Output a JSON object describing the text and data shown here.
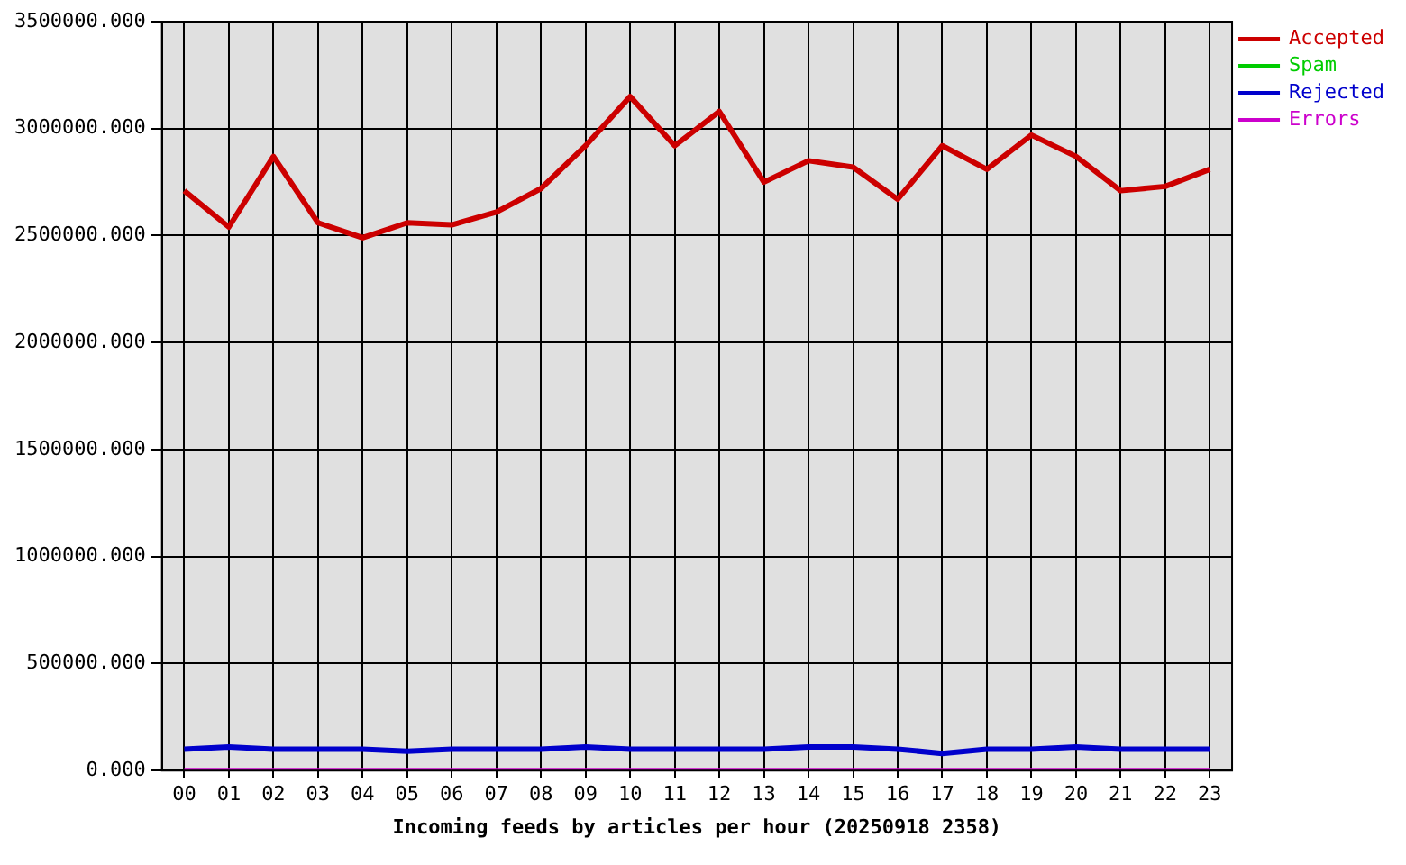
{
  "chart_data": {
    "type": "line",
    "xlabel": "Incoming feeds by articles per hour (20250918 2358)",
    "categories": [
      "00",
      "01",
      "02",
      "03",
      "04",
      "05",
      "06",
      "07",
      "08",
      "09",
      "10",
      "11",
      "12",
      "13",
      "14",
      "15",
      "16",
      "17",
      "18",
      "19",
      "20",
      "21",
      "22",
      "23"
    ],
    "series": [
      {
        "name": "Accepted",
        "color": "#cc0000",
        "values": [
          2710000,
          2540000,
          2870000,
          2560000,
          2490000,
          2560000,
          2550000,
          2610000,
          2720000,
          2920000,
          3150000,
          2920000,
          3080000,
          2750000,
          2850000,
          2820000,
          2670000,
          2920000,
          2810000,
          2970000,
          2870000,
          2710000,
          2730000,
          2810000
        ]
      },
      {
        "name": "Spam",
        "color": "#00cc00",
        "values": [
          null,
          null,
          null,
          null,
          null,
          null,
          null,
          null,
          null,
          null,
          null,
          null,
          null,
          null,
          null,
          null,
          null,
          null,
          null,
          null,
          null,
          null,
          null,
          null
        ]
      },
      {
        "name": "Rejected",
        "color": "#0000cc",
        "values": [
          100000,
          110000,
          100000,
          100000,
          100000,
          90000,
          100000,
          100000,
          100000,
          110000,
          100000,
          100000,
          100000,
          100000,
          110000,
          110000,
          100000,
          80000,
          100000,
          100000,
          110000,
          100000,
          100000,
          100000
        ]
      },
      {
        "name": "Errors",
        "color": "#cc00cc",
        "values": [
          0,
          0,
          0,
          0,
          0,
          0,
          0,
          0,
          0,
          0,
          0,
          0,
          0,
          0,
          0,
          0,
          0,
          0,
          0,
          0,
          0,
          0,
          0,
          0
        ]
      }
    ],
    "ylim": [
      0,
      3500000
    ],
    "yticks": [
      {
        "value": 0,
        "label": "0.000"
      },
      {
        "value": 500000,
        "label": "500000.000"
      },
      {
        "value": 1000000,
        "label": "1000000.000"
      },
      {
        "value": 1500000,
        "label": "1500000.000"
      },
      {
        "value": 2000000,
        "label": "2000000.000"
      },
      {
        "value": 2500000,
        "label": "2500000.000"
      },
      {
        "value": 3000000,
        "label": "3000000.000"
      },
      {
        "value": 3500000,
        "label": "3500000.000"
      }
    ],
    "grid": true,
    "legend": "top right",
    "marker": "none",
    "line_style": "solid"
  }
}
